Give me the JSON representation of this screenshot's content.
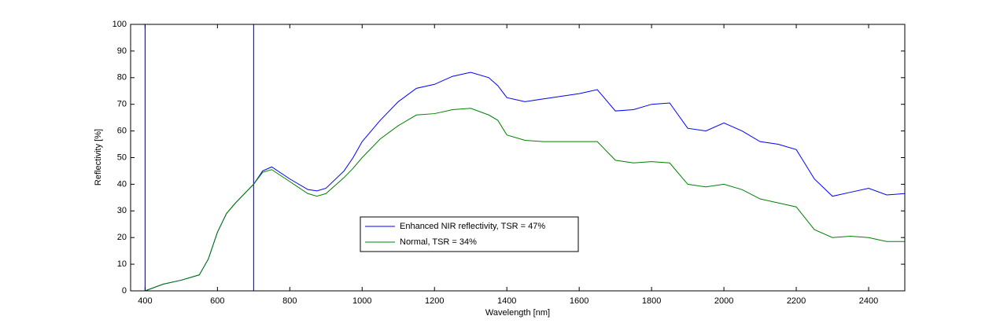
{
  "chart_data": {
    "type": "line",
    "xlabel": "Wavelength [nm]",
    "ylabel": "Reflectivity [%]",
    "x": [
      400,
      450,
      500,
      550,
      575,
      600,
      625,
      650,
      700,
      725,
      750,
      800,
      850,
      875,
      900,
      950,
      975,
      1000,
      1050,
      1100,
      1150,
      1200,
      1250,
      1300,
      1350,
      1375,
      1400,
      1450,
      1500,
      1550,
      1600,
      1650,
      1700,
      1750,
      1800,
      1850,
      1900,
      1950,
      2000,
      2050,
      2100,
      2150,
      2200,
      2250,
      2300,
      2350,
      2400,
      2450,
      2500
    ],
    "series": [
      {
        "name": "Enhanced NIR reflectivity, TSR = 47%",
        "color": "#0000ff",
        "values": [
          0,
          2.5,
          4,
          6,
          12,
          22,
          29,
          33,
          40,
          45,
          46.5,
          42,
          38,
          37.5,
          38.5,
          45,
          50,
          56,
          64,
          71,
          76,
          77.5,
          80.5,
          82,
          80,
          77,
          72.5,
          71,
          72,
          73,
          74,
          75.5,
          67.5,
          68,
          70,
          70.5,
          61,
          60,
          63,
          60,
          56,
          55,
          53,
          42,
          35.5,
          37,
          38.5,
          36,
          36.5
        ]
      },
      {
        "name": "Normal, TSR = 34%",
        "color": "#008000",
        "values": [
          0,
          2.5,
          4,
          6,
          12,
          22,
          29,
          33,
          40,
          44.5,
          45.5,
          41,
          36.5,
          35.5,
          36.5,
          42.5,
          46,
          50,
          57,
          62,
          66,
          66.5,
          68,
          68.5,
          66,
          64,
          58.5,
          56.5,
          56,
          56,
          56,
          56,
          49,
          48,
          48.5,
          48,
          40,
          39,
          40,
          38,
          34.5,
          33,
          31.5,
          23,
          20,
          20.5,
          20,
          18.5,
          18.5
        ]
      }
    ],
    "vlines": [
      400,
      700
    ],
    "xlim": [
      360,
      2500
    ],
    "ylim": [
      0,
      100
    ],
    "xticks": [
      400,
      600,
      800,
      1000,
      1200,
      1400,
      1600,
      1800,
      2000,
      2200,
      2400
    ],
    "yticks": [
      0,
      10,
      20,
      30,
      40,
      50,
      60,
      70,
      80,
      90,
      100
    ],
    "legend": "lower-center"
  }
}
